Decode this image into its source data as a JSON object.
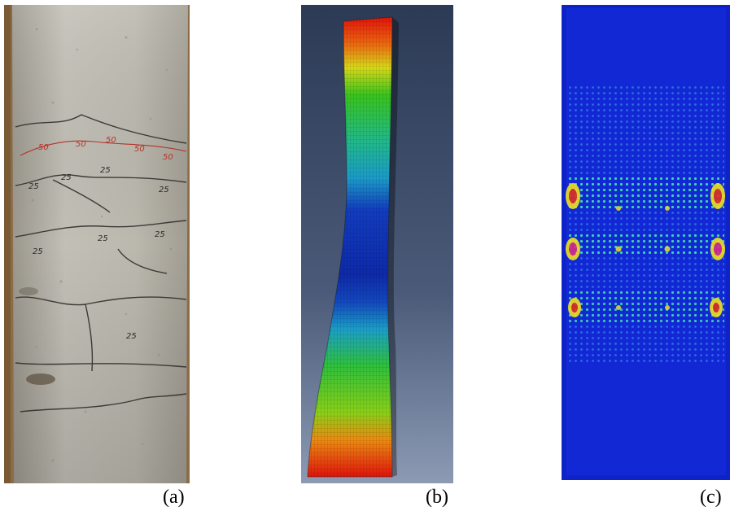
{
  "panels": [
    {
      "id": "a",
      "caption": "(a)",
      "description": "photo of cracked concrete column specimen"
    },
    {
      "id": "b",
      "caption": "(b)",
      "description": "finite element deformed mesh contour"
    },
    {
      "id": "c",
      "caption": "(c)",
      "description": "finite element damage contour"
    }
  ],
  "panel_a": {
    "crack_marks": [
      "50",
      "50",
      "50",
      "50",
      "50",
      "25",
      "25",
      "25",
      "25",
      "25",
      "25",
      "25",
      "25"
    ]
  },
  "colors": {
    "concrete": "#b5b2a8",
    "contour_red": "#e0140c",
    "contour_yellow": "#e8e010",
    "contour_green": "#28c818",
    "contour_cyan": "#18b8c0",
    "contour_blue": "#1030c0",
    "background_b": "#3c4c66"
  }
}
